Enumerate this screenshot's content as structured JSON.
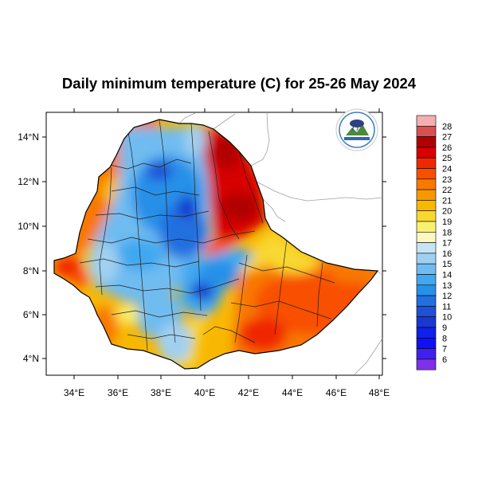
{
  "map": {
    "title": "Daily minimum temperature (C) for 25-26 May 2024",
    "lon_ticks": [
      "34°E",
      "36°E",
      "38°E",
      "40°E",
      "42°E",
      "44°E",
      "46°E",
      "48°E"
    ],
    "lat_ticks": [
      "4°N",
      "6°N",
      "8°N",
      "10°N",
      "12°N",
      "14°N"
    ],
    "lon_range": [
      33.0,
      48.2
    ],
    "lat_range": [
      3.2,
      15.0
    ],
    "variable_unit": "C",
    "logo_icon": "ethiopian-meteorology-institute-logo"
  },
  "legend": {
    "levels": [
      {
        "label": "28",
        "color": "#f4b0b0"
      },
      {
        "label": "27",
        "color": "#d85050"
      },
      {
        "label": "26",
        "color": "#b00000"
      },
      {
        "label": "25",
        "color": "#d80000"
      },
      {
        "label": "24",
        "color": "#f02800"
      },
      {
        "label": "23",
        "color": "#f85000"
      },
      {
        "label": "22",
        "color": "#f87800"
      },
      {
        "label": "21",
        "color": "#f89800"
      },
      {
        "label": "20",
        "color": "#f8b800"
      },
      {
        "label": "19",
        "color": "#f8d830"
      },
      {
        "label": "18",
        "color": "#f8f070"
      },
      {
        "label": "17",
        "color": "#fcf8c0"
      },
      {
        "label": "16",
        "color": "#c8e4f4"
      },
      {
        "label": "15",
        "color": "#a0d0f0"
      },
      {
        "label": "14",
        "color": "#70bcf0"
      },
      {
        "label": "13",
        "color": "#40a8f0"
      },
      {
        "label": "12",
        "color": "#2890e8"
      },
      {
        "label": "11",
        "color": "#2070e0"
      },
      {
        "label": "10",
        "color": "#2050d8"
      },
      {
        "label": "9",
        "color": "#1838d0"
      },
      {
        "label": "8",
        "color": "#1020e8"
      },
      {
        "label": "7",
        "color": "#1010f8"
      },
      {
        "label": "6",
        "color": "#4020f0"
      },
      {
        "label": "",
        "color": "#8030e8"
      }
    ]
  }
}
